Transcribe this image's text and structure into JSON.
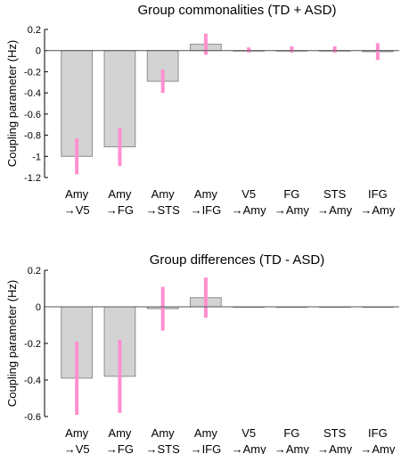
{
  "chart_data": [
    {
      "type": "bar",
      "title": "Group commonalities (TD + ASD)",
      "ylabel": "Coupling parameter (Hz)",
      "ylim": [
        -1.2,
        0.2
      ],
      "yticks": [
        "0.2",
        "0",
        "-0.2",
        "-0.4",
        "-0.6",
        "-0.8",
        "-1",
        "-1.2"
      ],
      "categories": [
        {
          "top": "Amy",
          "bottom": "→V5"
        },
        {
          "top": "Amy",
          "bottom": "→FG"
        },
        {
          "top": "Amy",
          "bottom": "→STS"
        },
        {
          "top": "Amy",
          "bottom": "→IFG"
        },
        {
          "top": "V5",
          "bottom": "→Amy"
        },
        {
          "top": "FG",
          "bottom": "→Amy"
        },
        {
          "top": "STS",
          "bottom": "→Amy"
        },
        {
          "top": "IFG",
          "bottom": "→Amy"
        }
      ],
      "values": [
        -1.0,
        -0.91,
        -0.29,
        0.06,
        0.0,
        0.0,
        0.0,
        -0.01
      ],
      "error_intervals": [
        [
          -1.17,
          -0.83
        ],
        [
          -1.09,
          -0.73
        ],
        [
          -0.4,
          -0.18
        ],
        [
          -0.04,
          0.16
        ],
        [
          -0.02,
          0.03
        ],
        [
          -0.02,
          0.04
        ],
        [
          -0.02,
          0.04
        ],
        [
          -0.09,
          0.07
        ]
      ],
      "colors": {
        "bar": "#d3d3d3",
        "bar_edge": "#8c8c8c",
        "error": "#ff8fcf"
      }
    },
    {
      "type": "bar",
      "title": "Group differences (TD - ASD)",
      "ylabel": "Coupling parameter (Hz)",
      "ylim": [
        -0.6,
        0.2
      ],
      "yticks": [
        "0.2",
        "0",
        "-0.2",
        "-0.4",
        "-0.6"
      ],
      "categories": [
        {
          "top": "Amy",
          "bottom": "→V5"
        },
        {
          "top": "Amy",
          "bottom": "→FG"
        },
        {
          "top": "Amy",
          "bottom": "→STS"
        },
        {
          "top": "Amy",
          "bottom": "→IFG"
        },
        {
          "top": "V5",
          "bottom": "→Amy"
        },
        {
          "top": "FG",
          "bottom": "→Amy"
        },
        {
          "top": "STS",
          "bottom": "→Amy"
        },
        {
          "top": "IFG",
          "bottom": "→Amy"
        }
      ],
      "values": [
        -0.39,
        -0.38,
        -0.01,
        0.05,
        0.0,
        0.0,
        0.0,
        0.0
      ],
      "error_intervals": [
        [
          -0.59,
          -0.19
        ],
        [
          -0.58,
          -0.18
        ],
        [
          -0.13,
          0.11
        ],
        [
          -0.06,
          0.16
        ],
        [
          0,
          0
        ],
        [
          0,
          0
        ],
        [
          0,
          0
        ],
        [
          0,
          0
        ]
      ],
      "colors": {
        "bar": "#d3d3d3",
        "bar_edge": "#8c8c8c",
        "error": "#ff8fcf"
      }
    }
  ]
}
